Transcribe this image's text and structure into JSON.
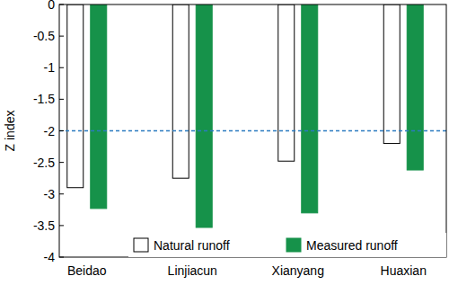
{
  "chart_data": {
    "type": "bar",
    "y_label": "Z index",
    "categories": [
      "Beidao",
      "Linjiacun",
      "Xianyang",
      "Huaxian"
    ],
    "series": [
      {
        "name": "Natural runoff",
        "color": "#ffffff",
        "values": [
          -2.9,
          -2.75,
          -2.48,
          -2.2
        ]
      },
      {
        "name": "Measured runoff",
        "color": "#16924a",
        "values": [
          -3.23,
          -3.53,
          -3.3,
          -2.62
        ]
      }
    ],
    "threshold": -2,
    "ylim": [
      -4,
      0
    ],
    "yticks": [
      0,
      -0.5,
      -1,
      -1.5,
      -2,
      -2.5,
      -3,
      -3.5,
      -4
    ],
    "legend": "lower right",
    "grid": false
  }
}
